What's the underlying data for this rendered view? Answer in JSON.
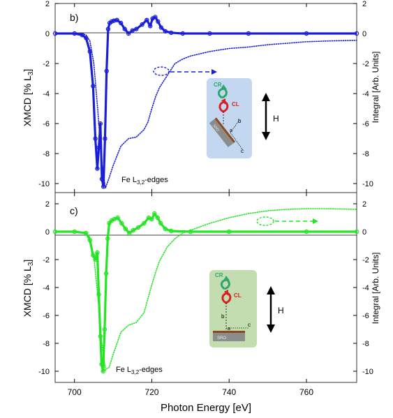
{
  "figure": {
    "xlabel": "Photon Energy [eV]",
    "x_ticks": [
      "700",
      "720",
      "740",
      "760"
    ],
    "xlim": [
      695,
      773
    ],
    "colors": {
      "frame": "#333333",
      "panel_b": "#1a1fd6",
      "panel_c": "#22e622",
      "cr_arrow": "#2aa86a",
      "cl_arrow": "#d92020",
      "sro_fill": "#888888",
      "film_fill": "#8a4a1a",
      "inset_b_bg": "#c3d7f0",
      "inset_c_bg": "#c4ddb0"
    }
  },
  "chart_data": [
    {
      "type": "line",
      "panel_label": "b)",
      "ylabel_left": "XMCD [% L",
      "ylabel_left_sub": "3",
      "ylabel_left_end": "]",
      "ylabel_right": "Integral [Arb. Units]",
      "ylim": [
        -10.6,
        2
      ],
      "y_ticks": [
        2,
        0,
        -2,
        -4,
        -6,
        -8,
        -10
      ],
      "annotation": {
        "text": "Fe L",
        "sub": "3,2",
        "end": "-edges"
      },
      "inset": {
        "cr": "CR",
        "cl": "CL",
        "field": "H",
        "sro": "SRO",
        "axis_a": "a",
        "axis_b": "b",
        "axis_c": "c"
      },
      "series": [
        {
          "style": "markers",
          "x": [
            695,
            700,
            702,
            703,
            704,
            704.8,
            705.4,
            705.9,
            706.3,
            706.7,
            707.1,
            707.5,
            707.9,
            708.3,
            708.7,
            709.1,
            709.6,
            710.2,
            711.0,
            712.0,
            713.0,
            714.0,
            715.0,
            716.0,
            717.5,
            718.7,
            719.6,
            720.2,
            720.9,
            721.6,
            722.4,
            723.5,
            725,
            728,
            735,
            745,
            760,
            773
          ],
          "y": [
            0,
            0,
            -0.1,
            -0.3,
            -1.2,
            -3.5,
            -7.0,
            -9.0,
            -7.6,
            -6.0,
            -9.7,
            -10.2,
            -7.0,
            -2.5,
            0.3,
            0.7,
            0.8,
            0.85,
            0.9,
            0.7,
            0.3,
            0.0,
            0.2,
            0.3,
            0.6,
            0.9,
            0.5,
            1.0,
            1.1,
            0.8,
            0.4,
            0.15,
            0.05,
            0.0,
            0.0,
            0.0,
            0.0,
            0.0
          ]
        },
        {
          "style": "dotted",
          "x": [
            695,
            700,
            702,
            703,
            704,
            705,
            706,
            707,
            708,
            709,
            710,
            712,
            714,
            716,
            718,
            719,
            720,
            721,
            722,
            724,
            726,
            728,
            730,
            735,
            740,
            745,
            750,
            755,
            760,
            765,
            773
          ],
          "y": [
            0,
            0,
            0,
            -0.1,
            -0.5,
            -2.0,
            -5.0,
            -8.5,
            -10.3,
            -9.6,
            -8.8,
            -7.5,
            -7.0,
            -6.9,
            -6.4,
            -5.9,
            -5.0,
            -4.2,
            -3.6,
            -2.8,
            -2.0,
            -1.7,
            -1.5,
            -1.2,
            -1.0,
            -0.9,
            -0.75,
            -0.65,
            -0.55,
            -0.5,
            -0.45
          ]
        }
      ]
    },
    {
      "type": "line",
      "panel_label": "c)",
      "ylabel_left": "XMCD [% L",
      "ylabel_left_sub": "3",
      "ylabel_left_end": "]",
      "ylabel_right": "Integral [Arb. Units]",
      "ylim": [
        -10.8,
        2.8
      ],
      "y_ticks": [
        2,
        0,
        -2,
        -4,
        -6,
        -8,
        -10
      ],
      "annotation": {
        "text": "Fe L",
        "sub": "3,2",
        "end": "-edges"
      },
      "inset": {
        "cr": "CR",
        "cl": "CL",
        "field": "H",
        "sro": "SRO",
        "axis_a": "a",
        "axis_b": "b",
        "axis_c": "c"
      },
      "series": [
        {
          "style": "markers",
          "x": [
            695,
            700,
            703,
            704,
            704.8,
            705.4,
            705.9,
            706.3,
            706.7,
            707.0,
            707.4,
            707.8,
            708.2,
            708.6,
            709.0,
            709.6,
            710.3,
            711.2,
            712.2,
            713.2,
            714.2,
            715.2,
            716.5,
            718,
            719.2,
            720.0,
            720.7,
            721.5,
            722.3,
            723.5,
            725,
            730,
            740,
            760,
            773
          ],
          "y": [
            0,
            0,
            -0.1,
            -0.6,
            -1.7,
            -2.0,
            -1.5,
            -4.5,
            -7.5,
            -9.5,
            -10.0,
            -7.0,
            -3.0,
            -0.5,
            0.6,
            0.8,
            0.9,
            1.0,
            0.6,
            0.2,
            -0.1,
            0.1,
            0.3,
            0.6,
            1.0,
            0.9,
            1.3,
            1.0,
            0.6,
            0.2,
            0.05,
            0,
            0,
            0,
            0
          ]
        },
        {
          "style": "dotted",
          "x": [
            695,
            700,
            703,
            704,
            705,
            706,
            707,
            708,
            709,
            710,
            712,
            714,
            716,
            718,
            719,
            720,
            721,
            722,
            724,
            726,
            728,
            730,
            735,
            740,
            745,
            750,
            755,
            760,
            765,
            773
          ],
          "y": [
            0,
            0,
            -0.1,
            -0.4,
            -1.8,
            -4.5,
            -7.8,
            -9.9,
            -9.7,
            -8.8,
            -7.2,
            -6.7,
            -6.5,
            -5.8,
            -4.8,
            -3.8,
            -2.9,
            -2.1,
            -1.1,
            -0.5,
            -0.1,
            0.1,
            0.6,
            1.0,
            1.3,
            1.5,
            1.6,
            1.65,
            1.65,
            1.6
          ]
        }
      ]
    }
  ]
}
